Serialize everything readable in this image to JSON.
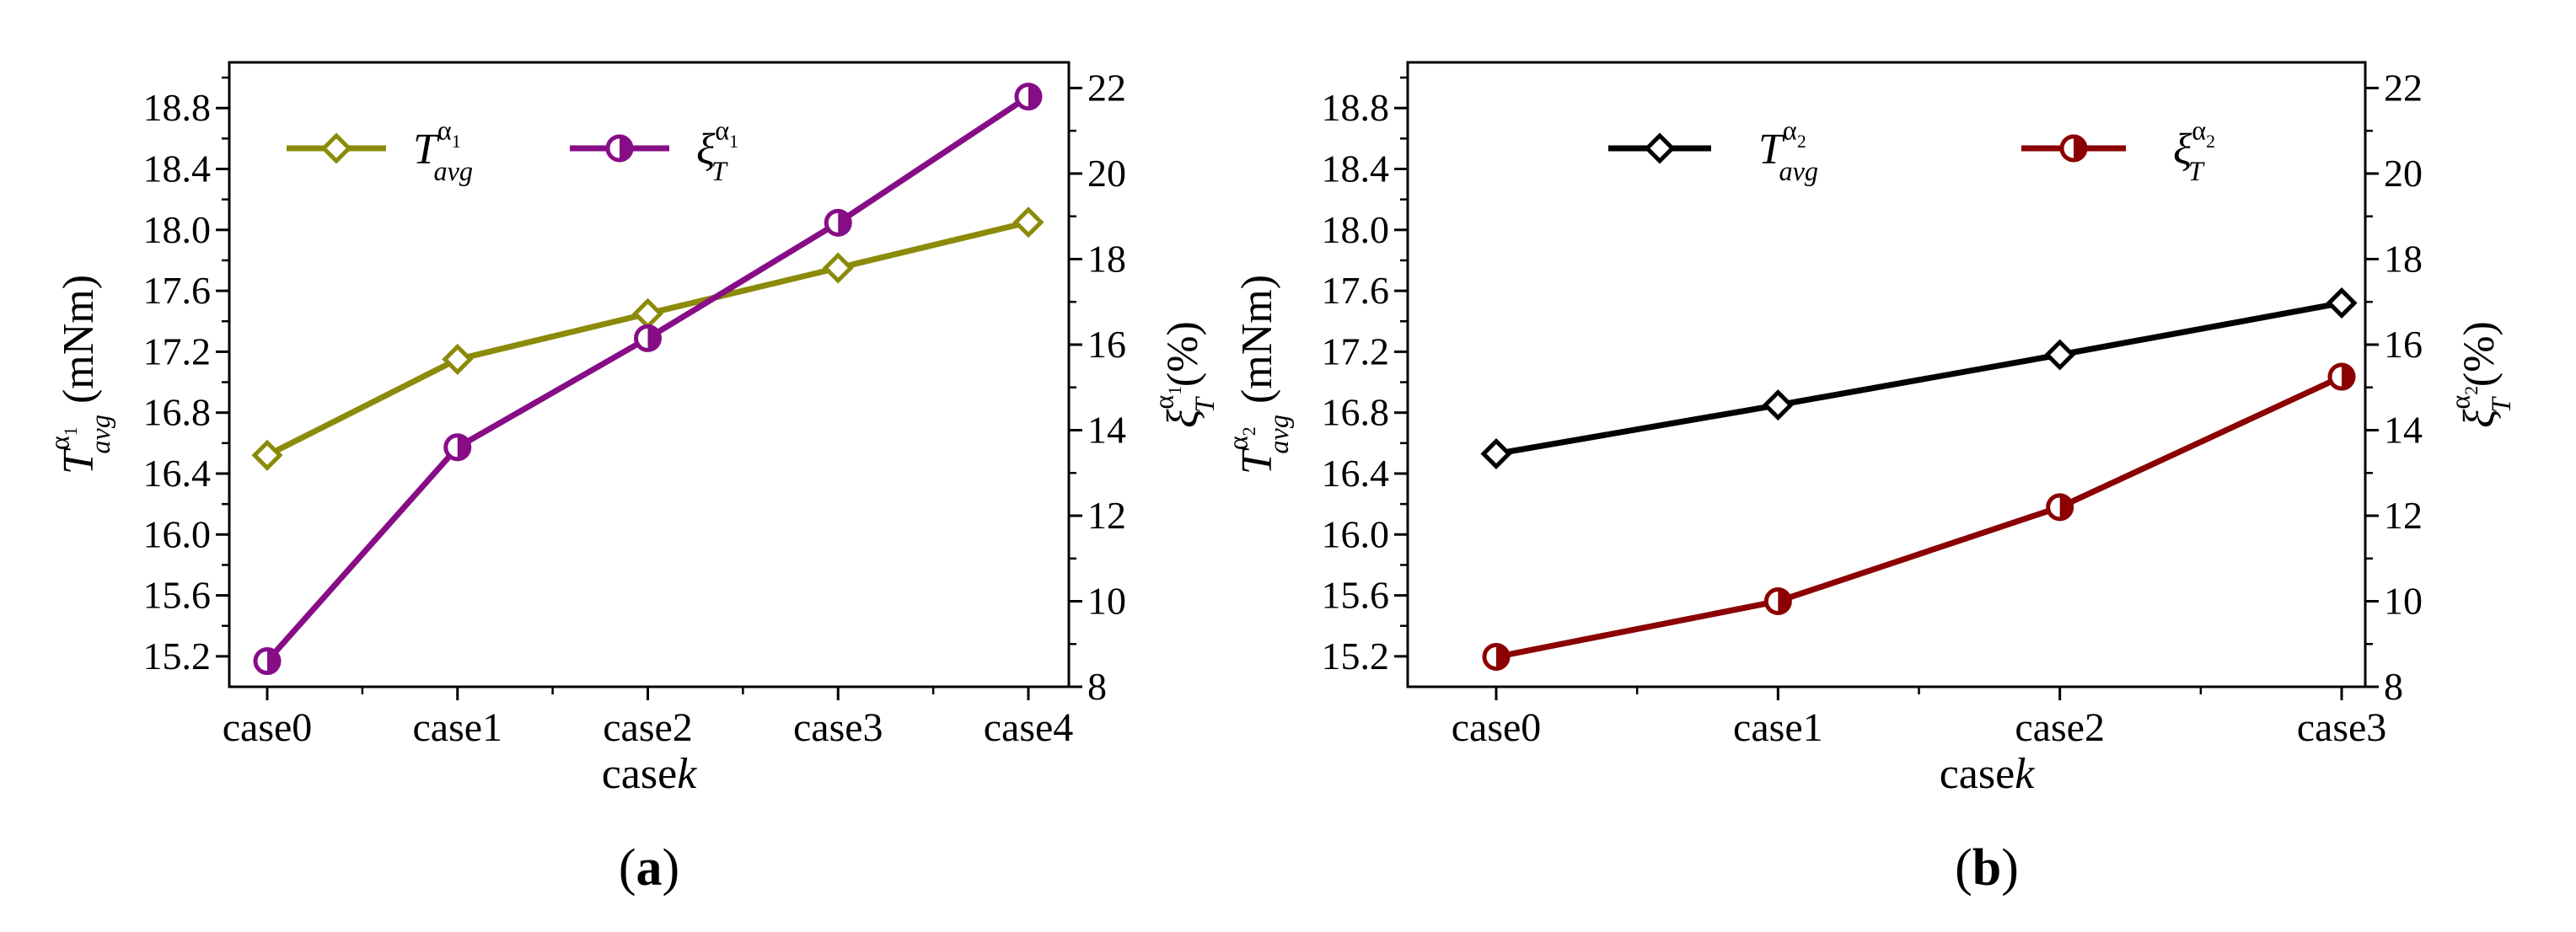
{
  "chart_data": [
    {
      "type": "line",
      "panel_label": "a",
      "categories": [
        "case0",
        "case1",
        "case2",
        "case3",
        "case4"
      ],
      "xlabel": {
        "text": "case",
        "italic": "k"
      },
      "ylabel_left": {
        "symbol": "T",
        "sup": "α",
        "sup_sub": "1",
        "sub": "avg",
        "unit": "(mNm)"
      },
      "ylabel_right": {
        "symbol": "ξ",
        "sup": "α",
        "sup_sub": "1",
        "sub": "T",
        "unit": "(%)"
      },
      "ylim_left": [
        15.0,
        19.1
      ],
      "yticks_left": [
        "15.2",
        "15.6",
        "16.0",
        "16.4",
        "16.8",
        "17.2",
        "17.6",
        "18.0",
        "18.4",
        "18.8"
      ],
      "ylim_right": [
        8,
        22.6
      ],
      "yticks_right": [
        "8",
        "10",
        "12",
        "14",
        "16",
        "18",
        "20",
        "22"
      ],
      "series": [
        {
          "name": "T_avg^α1",
          "legend": {
            "symbol": "T",
            "sup": "α",
            "sup_sub": "1",
            "sub": "avg"
          },
          "axis": "left",
          "marker": "diamond",
          "color": "#8B8B0A",
          "values": [
            16.52,
            17.15,
            17.45,
            17.75,
            18.05
          ]
        },
        {
          "name": "ξ_T^α1",
          "legend": {
            "symbol": "ξ",
            "sup": "α",
            "sup_sub": "1",
            "sub": "T"
          },
          "axis": "right",
          "marker": "half-circle",
          "color": "#870D87",
          "values": [
            8.6,
            13.6,
            16.15,
            18.85,
            21.8
          ]
        }
      ]
    },
    {
      "type": "line",
      "panel_label": "b",
      "categories": [
        "case0",
        "case1",
        "case2",
        "case3"
      ],
      "xlabel": {
        "text": "case",
        "italic": "k"
      },
      "ylabel_left": {
        "symbol": "T",
        "sup": "α",
        "sup_sub": "2",
        "sub": "avg",
        "unit": "(mNm)"
      },
      "ylabel_right": {
        "symbol": "ξ",
        "sup": "α",
        "sup_sub": "2",
        "sub": "T",
        "unit": "(%)"
      },
      "ylim_left": [
        15.0,
        19.1
      ],
      "yticks_left": [
        "15.2",
        "15.6",
        "16.0",
        "16.4",
        "16.8",
        "17.2",
        "17.6",
        "18.0",
        "18.4",
        "18.8"
      ],
      "ylim_right": [
        8,
        22.6
      ],
      "yticks_right": [
        "8",
        "10",
        "12",
        "14",
        "16",
        "18",
        "20",
        "22"
      ],
      "series": [
        {
          "name": "T_avg^α2",
          "legend": {
            "symbol": "T",
            "sup": "α",
            "sup_sub": "2",
            "sub": "avg"
          },
          "axis": "left",
          "marker": "diamond",
          "color": "#000000",
          "values": [
            16.53,
            16.85,
            17.18,
            17.52
          ]
        },
        {
          "name": "ξ_T^α2",
          "legend": {
            "symbol": "ξ",
            "sup": "α",
            "sup_sub": "2",
            "sub": "T"
          },
          "axis": "right",
          "marker": "half-circle",
          "color": "#8B0000",
          "values": [
            8.7,
            10.0,
            12.2,
            15.25
          ]
        }
      ]
    }
  ]
}
